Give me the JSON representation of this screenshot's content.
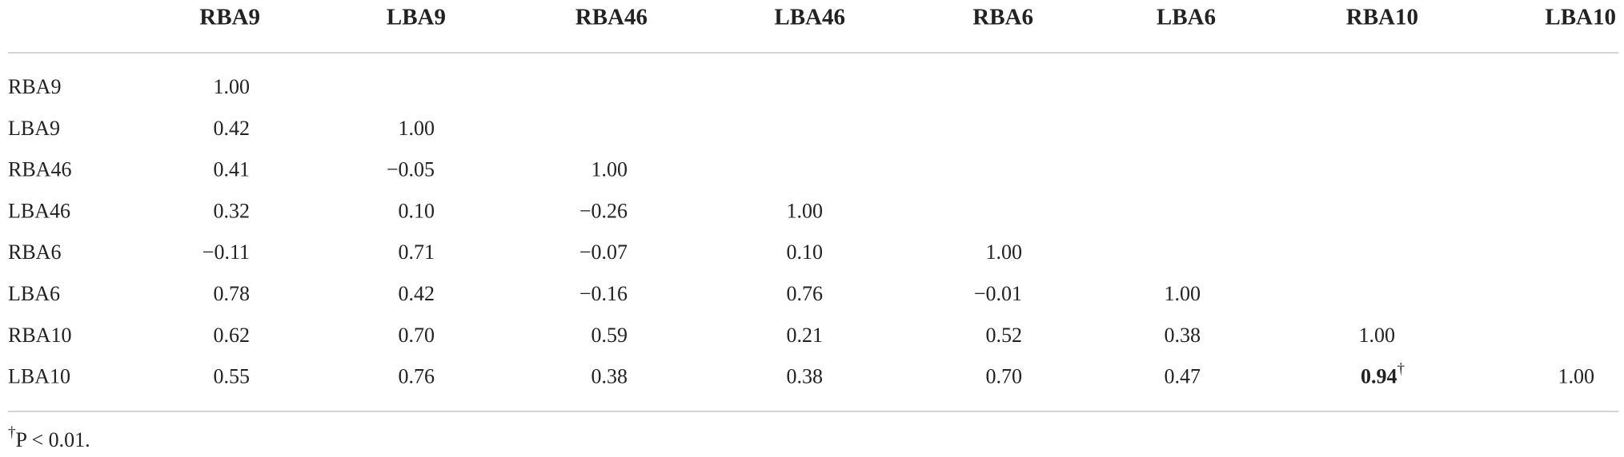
{
  "table": {
    "columns": [
      "RBA9",
      "LBA9",
      "RBA46",
      "LBA46",
      "RBA6",
      "LBA6",
      "RBA10",
      "LBA10"
    ],
    "rows": [
      {
        "label": "RBA9",
        "cells": [
          "1.00"
        ]
      },
      {
        "label": "LBA9",
        "cells": [
          "0.42",
          "1.00"
        ]
      },
      {
        "label": "RBA46",
        "cells": [
          "0.41",
          "−0.05",
          "1.00"
        ]
      },
      {
        "label": "LBA46",
        "cells": [
          "0.32",
          "0.10",
          "−0.26",
          "1.00"
        ]
      },
      {
        "label": "RBA6",
        "cells": [
          "−0.11",
          "0.71",
          "−0.07",
          "0.10",
          "1.00"
        ]
      },
      {
        "label": "LBA6",
        "cells": [
          "0.78",
          "0.42",
          "−0.16",
          "0.76",
          "−0.01",
          "1.00"
        ]
      },
      {
        "label": "RBA10",
        "cells": [
          "0.62",
          "0.70",
          "0.59",
          "0.21",
          "0.52",
          "0.38",
          "1.00"
        ]
      },
      {
        "label": "LBA10",
        "cells": [
          "0.55",
          "0.76",
          "0.38",
          "0.38",
          "0.70",
          "0.47",
          {
            "text": "0.94",
            "note": "†"
          },
          "1.00"
        ]
      }
    ]
  },
  "footnote": {
    "marker": "†",
    "text": "P < 0.01."
  }
}
